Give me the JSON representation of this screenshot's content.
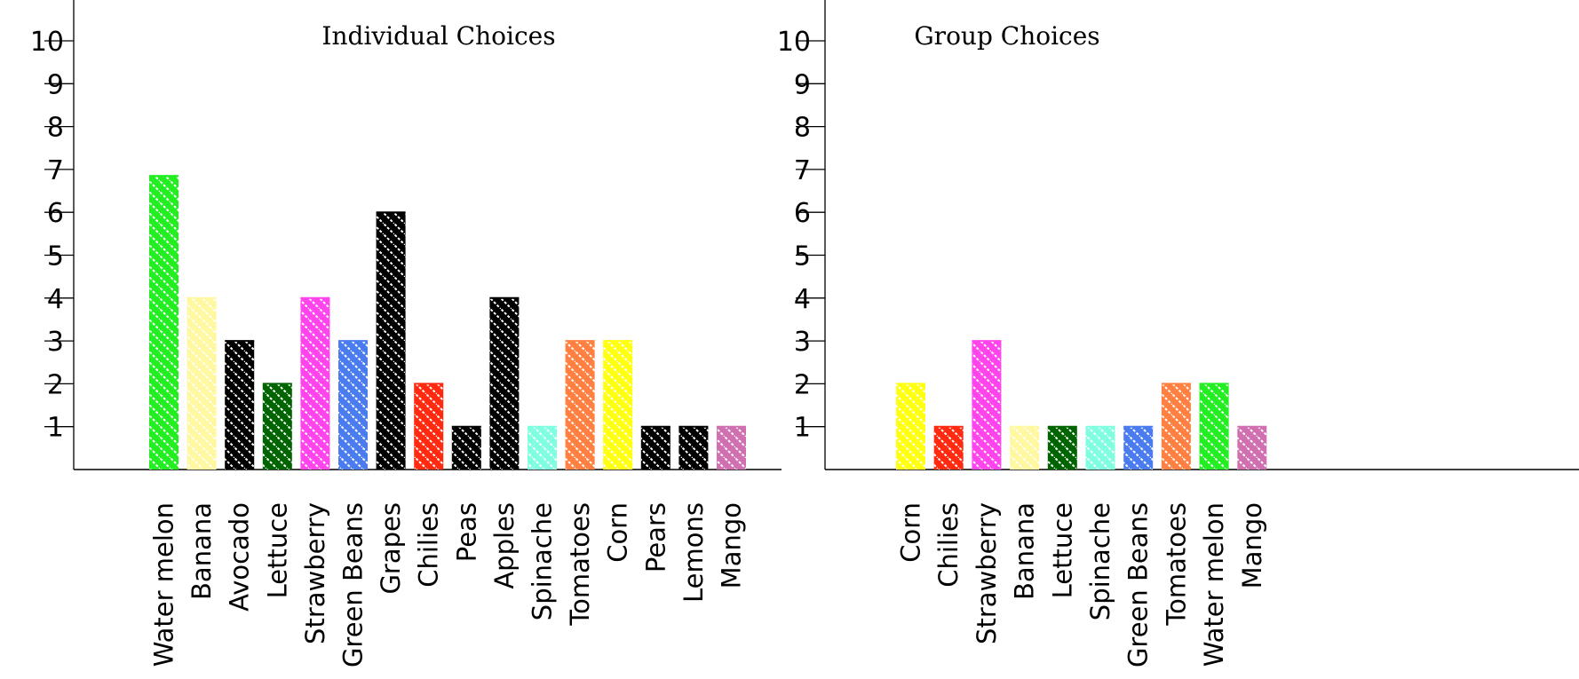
{
  "chart_data": [
    {
      "type": "bar",
      "title": "Individual Choices",
      "xlabel": "",
      "ylabel": "",
      "ylim": [
        0,
        10
      ],
      "yticks": [
        "1",
        "2",
        "3",
        "4",
        "5",
        "6",
        "7",
        "8",
        "9",
        "10"
      ],
      "grid": false,
      "bar_fill_pattern": "diagonal-hatch-white",
      "categories": [
        "Water melon",
        "Banana",
        "Avocado",
        "Lettuce",
        "Strawberry",
        "Green Beans",
        "Grapes",
        "Chilies",
        "Peas",
        "Apples",
        "Spinache",
        "Tomatoes",
        "Corn",
        "Pears",
        "Lemons",
        "Mango"
      ],
      "values": [
        6.85,
        4,
        3,
        2,
        4,
        3,
        6,
        2,
        1,
        4,
        1,
        3,
        3,
        1,
        1,
        1
      ],
      "colors": [
        "#22ee22",
        "#fff8a0",
        "#000000",
        "#006400",
        "#ff44ee",
        "#4a7cf0",
        "#000000",
        "#ff2a10",
        "#000000",
        "#000000",
        "#80ffe0",
        "#ff8040",
        "#ffff10",
        "#000000",
        "#000000",
        "#d070b0"
      ]
    },
    {
      "type": "bar",
      "title": "Group Choices",
      "xlabel": "",
      "ylabel": "",
      "ylim": [
        0,
        10
      ],
      "yticks": [
        "1",
        "2",
        "3",
        "4",
        "5",
        "6",
        "7",
        "8",
        "9",
        "10"
      ],
      "grid": false,
      "bar_fill_pattern": "diagonal-hatch-white",
      "categories": [
        "Corn",
        "Chilies",
        "Strawberry",
        "Banana",
        "Lettuce",
        "Spinache",
        "Green Beans",
        "Tomatoes",
        "Water melon",
        "Mango"
      ],
      "values": [
        2,
        1,
        3,
        1,
        1,
        1,
        1,
        2,
        2,
        1
      ],
      "colors": [
        "#ffff10",
        "#ff2a10",
        "#ff44ee",
        "#fff8a0",
        "#006400",
        "#80ffe0",
        "#4a7cf0",
        "#ff8040",
        "#22ee22",
        "#d070b0"
      ]
    }
  ]
}
